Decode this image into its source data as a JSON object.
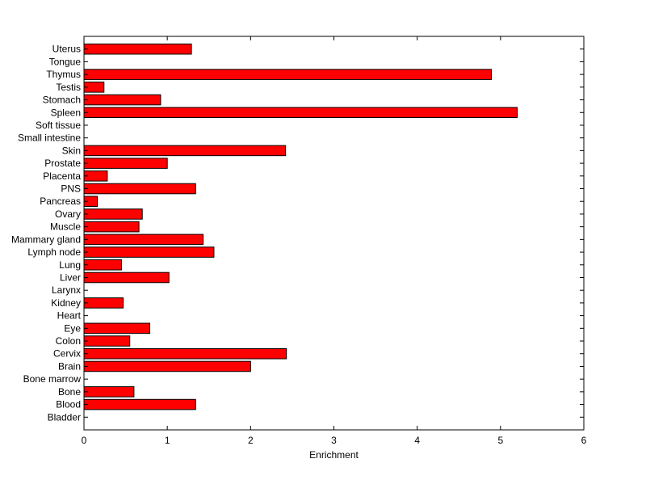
{
  "chart_data": {
    "type": "bar",
    "orientation": "horizontal",
    "title": "",
    "xlabel": "Enrichment",
    "ylabel": "",
    "xlim": [
      0,
      6
    ],
    "xticks": [
      0,
      1,
      2,
      3,
      4,
      5,
      6
    ],
    "categories": [
      "Uterus",
      "Tongue",
      "Thymus",
      "Testis",
      "Stomach",
      "Spleen",
      "Soft tissue",
      "Small intestine",
      "Skin",
      "Prostate",
      "Placenta",
      "PNS",
      "Pancreas",
      "Ovary",
      "Muscle",
      "Mammary gland",
      "Lymph node",
      "Lung",
      "Liver",
      "Larynx",
      "Kidney",
      "Heart",
      "Eye",
      "Colon",
      "Cervix",
      "Brain",
      "Bone marrow",
      "Bone",
      "Blood",
      "Bladder"
    ],
    "values": [
      1.29,
      0,
      4.89,
      0.24,
      0.92,
      5.2,
      0,
      0,
      2.42,
      1.0,
      0.28,
      1.34,
      0.16,
      0.7,
      0.66,
      1.43,
      1.56,
      0.45,
      1.02,
      0,
      0.47,
      0,
      0.79,
      0.55,
      2.43,
      2.0,
      0,
      0.6,
      1.34,
      0
    ],
    "bar_color": "#ff0000",
    "edge_color": "#000000",
    "grid": false,
    "legend": "none"
  }
}
